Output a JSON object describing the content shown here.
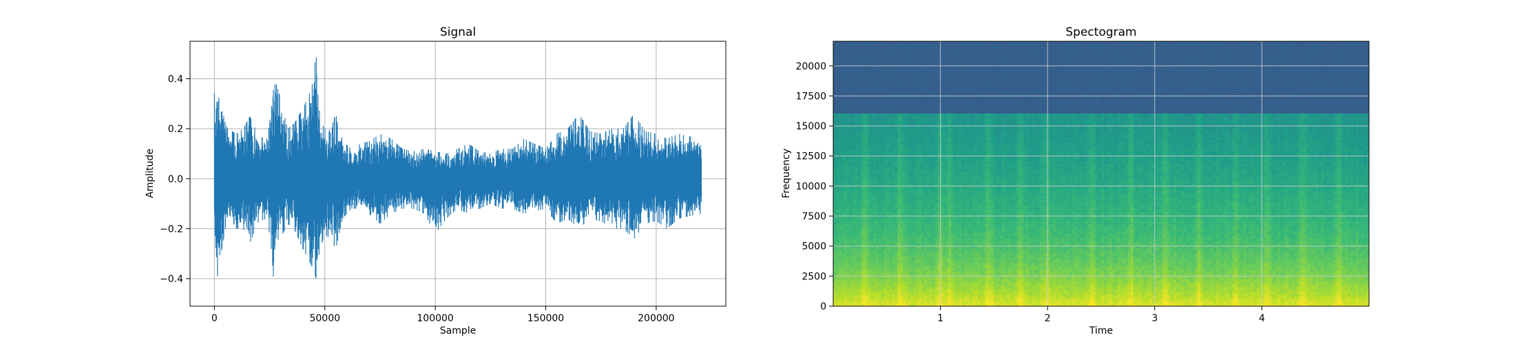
{
  "chart_data": [
    {
      "type": "line",
      "title": "Signal",
      "xlabel": "Sample",
      "ylabel": "Amplitude",
      "xlim": [
        -11025,
        231525
      ],
      "ylim": [
        -0.51,
        0.55
      ],
      "grid": true,
      "color": "#1f77b4",
      "xticks": [
        {
          "value": 0,
          "label": "0"
        },
        {
          "value": 50000,
          "label": "50000"
        },
        {
          "value": 100000,
          "label": "100000"
        },
        {
          "value": 150000,
          "label": "150000"
        },
        {
          "value": 200000,
          "label": "200000"
        }
      ],
      "yticks": [
        {
          "value": -0.4,
          "label": "−0.4"
        },
        {
          "value": -0.2,
          "label": "−0.2"
        },
        {
          "value": 0.0,
          "label": "0.0"
        },
        {
          "value": 0.2,
          "label": "0.2"
        },
        {
          "value": 0.4,
          "label": "0.4"
        }
      ],
      "envelope": {
        "x": [
          0,
          1000,
          2000,
          3000,
          4000,
          5000,
          6000,
          8000,
          10000,
          13000,
          16000,
          20000,
          24000,
          26000,
          27000,
          28000,
          30000,
          33000,
          36000,
          40000,
          44000,
          46000,
          47000,
          48000,
          50000,
          52000,
          55000,
          58000,
          62000,
          66000,
          70000,
          75000,
          80000,
          85000,
          90000,
          95000,
          100000,
          105000,
          110000,
          115000,
          120000,
          125000,
          130000,
          135000,
          140000,
          145000,
          150000,
          155000,
          160000,
          165000,
          170000,
          175000,
          180000,
          185000,
          190000,
          195000,
          200000,
          205000,
          210000,
          215000,
          220500
        ],
        "max": [
          0.34,
          0.36,
          0.38,
          0.33,
          0.26,
          0.22,
          0.2,
          0.19,
          0.18,
          0.2,
          0.25,
          0.17,
          0.16,
          0.3,
          0.45,
          0.38,
          0.32,
          0.2,
          0.22,
          0.28,
          0.36,
          0.5,
          0.4,
          0.3,
          0.2,
          0.22,
          0.3,
          0.15,
          0.12,
          0.14,
          0.15,
          0.18,
          0.16,
          0.12,
          0.11,
          0.12,
          0.11,
          0.1,
          0.12,
          0.14,
          0.11,
          0.1,
          0.12,
          0.12,
          0.16,
          0.14,
          0.12,
          0.18,
          0.2,
          0.26,
          0.19,
          0.18,
          0.2,
          0.2,
          0.26,
          0.19,
          0.18,
          0.16,
          0.18,
          0.17,
          0.16
        ],
        "min": [
          -0.25,
          -0.46,
          -0.44,
          -0.3,
          -0.25,
          -0.2,
          -0.18,
          -0.17,
          -0.2,
          -0.2,
          -0.26,
          -0.17,
          -0.16,
          -0.3,
          -0.44,
          -0.32,
          -0.24,
          -0.18,
          -0.2,
          -0.28,
          -0.35,
          -0.4,
          -0.32,
          -0.28,
          -0.22,
          -0.24,
          -0.28,
          -0.16,
          -0.12,
          -0.12,
          -0.14,
          -0.18,
          -0.14,
          -0.12,
          -0.12,
          -0.14,
          -0.22,
          -0.16,
          -0.12,
          -0.14,
          -0.12,
          -0.1,
          -0.12,
          -0.12,
          -0.14,
          -0.13,
          -0.12,
          -0.18,
          -0.16,
          -0.2,
          -0.16,
          -0.17,
          -0.2,
          -0.2,
          -0.24,
          -0.18,
          -0.17,
          -0.2,
          -0.16,
          -0.15,
          -0.14
        ]
      }
    },
    {
      "type": "heatmap",
      "title": "Spectogram",
      "xlabel": "Time",
      "ylabel": "Frequency",
      "xlim": [
        0.0,
        5.0
      ],
      "ylim": [
        0,
        22050
      ],
      "grid": true,
      "colormap": "viridis",
      "cutoff_frequency": 16000,
      "xticks": [
        {
          "value": 1,
          "label": "1"
        },
        {
          "value": 2,
          "label": "2"
        },
        {
          "value": 3,
          "label": "3"
        },
        {
          "value": 4,
          "label": "4"
        }
      ],
      "yticks": [
        {
          "value": 0,
          "label": "0"
        },
        {
          "value": 2500,
          "label": "2500"
        },
        {
          "value": 5000,
          "label": "5000"
        },
        {
          "value": 7500,
          "label": "7500"
        },
        {
          "value": 10000,
          "label": "10000"
        },
        {
          "value": 12500,
          "label": "12500"
        },
        {
          "value": 15000,
          "label": "15000"
        },
        {
          "value": 17500,
          "label": "17500"
        },
        {
          "value": 20000,
          "label": "20000"
        }
      ],
      "frequency_profile": {
        "frequency": [
          0,
          1000,
          2500,
          4000,
          6000,
          9000,
          12000,
          15000,
          16000,
          16001,
          22050
        ],
        "intensity": [
          0.95,
          0.88,
          0.8,
          0.74,
          0.68,
          0.62,
          0.57,
          0.53,
          0.52,
          0.3,
          0.3
        ]
      },
      "bright_columns": [
        0.3,
        0.62,
        1.0,
        1.08,
        1.45,
        1.75,
        2.0,
        2.42,
        2.78,
        3.1,
        3.42,
        3.76,
        4.05,
        4.38,
        4.72
      ]
    }
  ]
}
